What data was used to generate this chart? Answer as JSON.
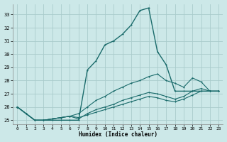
{
  "xlabel": "Humidex (Indice chaleur)",
  "bg_color": "#cce8e8",
  "grid_color": "#aacccc",
  "line_color": "#1a6b6b",
  "xlim": [
    -0.5,
    23.5
  ],
  "ylim": [
    24.7,
    33.8
  ],
  "yticks": [
    25,
    26,
    27,
    28,
    29,
    30,
    31,
    32,
    33
  ],
  "xticks": [
    0,
    1,
    2,
    3,
    4,
    5,
    6,
    7,
    8,
    9,
    10,
    11,
    12,
    13,
    14,
    15,
    16,
    17,
    18,
    19,
    20,
    21,
    22,
    23
  ],
  "series": [
    [
      26.0,
      25.5,
      25.0,
      25.0,
      25.0,
      25.0,
      25.0,
      25.0,
      28.8,
      29.5,
      30.7,
      31.0,
      31.5,
      32.2,
      33.3,
      33.5,
      30.2,
      29.2,
      27.2,
      27.2,
      27.2,
      27.2,
      27.2,
      27.2
    ],
    [
      26.0,
      25.5,
      25.0,
      25.0,
      25.1,
      25.2,
      25.3,
      25.5,
      26.0,
      26.5,
      26.8,
      27.2,
      27.5,
      27.8,
      28.0,
      28.3,
      28.5,
      28.0,
      27.8,
      27.5,
      28.2,
      27.9,
      27.2,
      27.2
    ],
    [
      26.0,
      25.5,
      25.0,
      25.0,
      25.1,
      25.2,
      25.3,
      25.1,
      25.5,
      25.8,
      26.0,
      26.2,
      26.5,
      26.7,
      26.9,
      27.1,
      27.0,
      26.8,
      26.6,
      26.8,
      27.2,
      27.4,
      27.2,
      27.2
    ],
    [
      26.0,
      25.5,
      25.0,
      25.0,
      25.1,
      25.2,
      25.3,
      25.2,
      25.4,
      25.6,
      25.8,
      26.0,
      26.2,
      26.4,
      26.6,
      26.8,
      26.7,
      26.5,
      26.4,
      26.6,
      26.9,
      27.2,
      27.2,
      27.2
    ]
  ]
}
